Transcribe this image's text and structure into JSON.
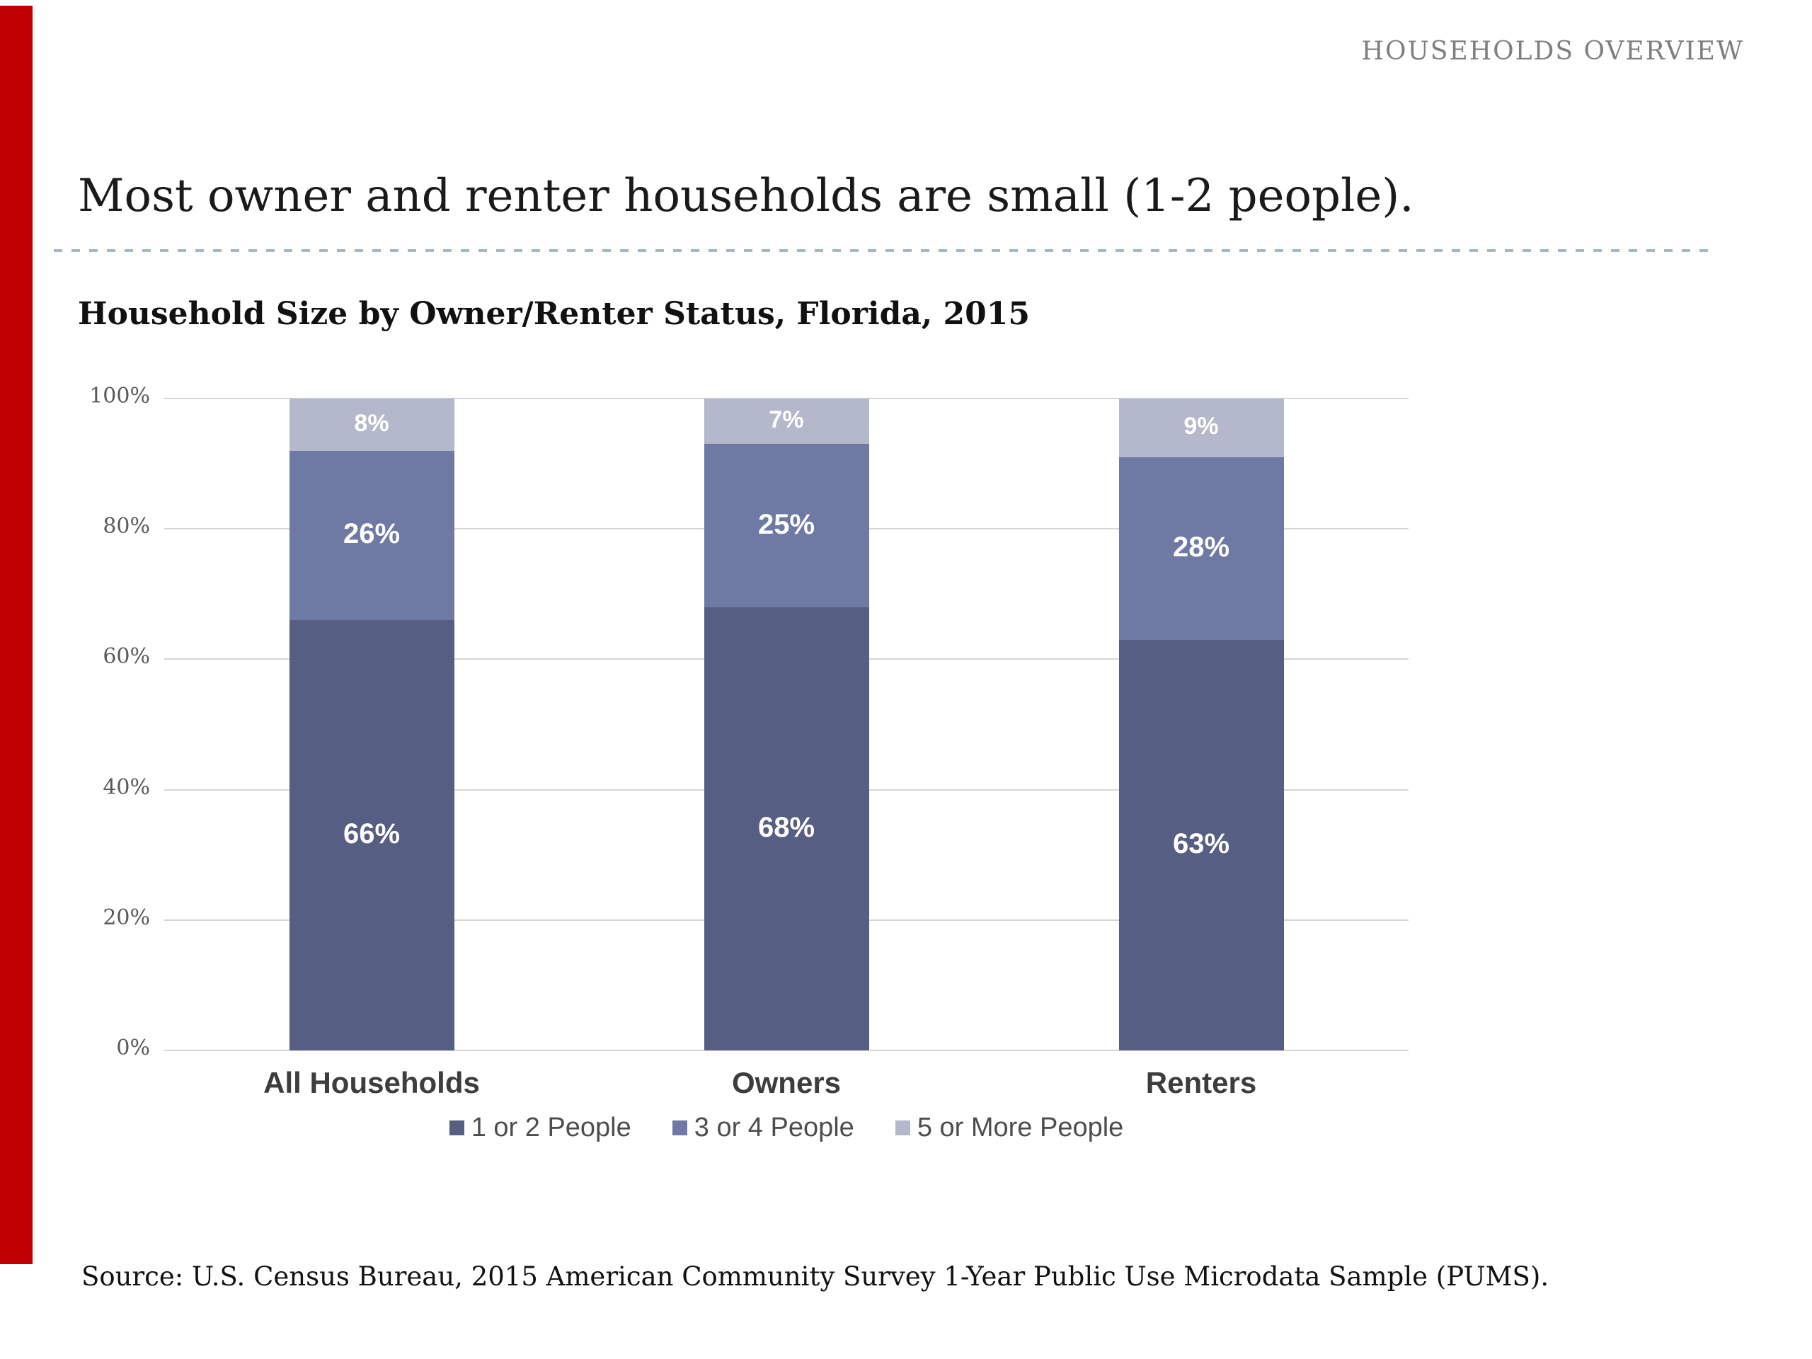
{
  "page": {
    "header_label": "HOUSEHOLDS OVERVIEW",
    "title": "Most owner and renter households are small (1-2 people).",
    "accent_color": "#c00000",
    "separator_color": "#a4b8c8"
  },
  "chart_data": {
    "type": "bar",
    "stacked": true,
    "title": "Household Size by Owner/Renter Status, Florida, 2015",
    "categories": [
      "All Households",
      "Owners",
      "Renters"
    ],
    "series": [
      {
        "name": "1 or 2 People",
        "color": "#575e83",
        "values": [
          66,
          68,
          63
        ]
      },
      {
        "name": "3 or 4 People",
        "color": "#6f7aa4",
        "values": [
          26,
          25,
          28
        ]
      },
      {
        "name": "5 or More People",
        "color": "#b3b8cb",
        "values": [
          8,
          7,
          9
        ]
      }
    ],
    "value_suffix": "%",
    "ylim": [
      0,
      100
    ],
    "y_ticks": [
      "0%",
      "20%",
      "40%",
      "60%",
      "80%",
      "100%"
    ],
    "grid": true,
    "legend_position": "bottom",
    "gridline_color": "#d6d6d6",
    "tick_color": "#595959"
  },
  "source": "Source: U.S. Census Bureau, 2015 American Community Survey 1-Year Public Use Microdata Sample (PUMS)."
}
